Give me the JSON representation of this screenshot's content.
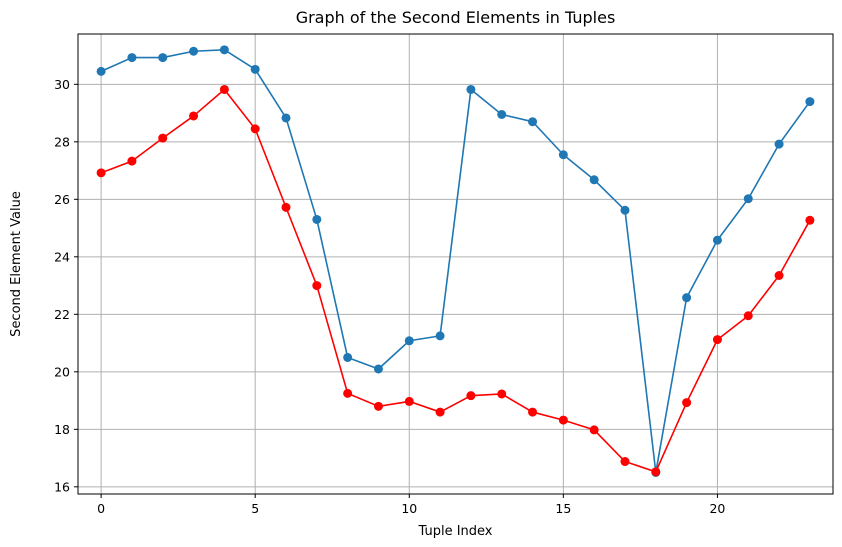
{
  "chart_data": {
    "type": "line",
    "title": "Graph of the Second Elements in Tuples",
    "xlabel": "Tuple Index",
    "ylabel": "Second Element Value",
    "xlim": [
      -0.75,
      23.75
    ],
    "ylim": [
      15.75,
      31.75
    ],
    "x_ticks": [
      0,
      5,
      10,
      15,
      20
    ],
    "y_ticks": [
      16,
      18,
      20,
      22,
      24,
      26,
      28,
      30
    ],
    "grid": true,
    "x": [
      0,
      1,
      2,
      3,
      4,
      5,
      6,
      7,
      8,
      9,
      10,
      11,
      12,
      13,
      14,
      15,
      16,
      17,
      18,
      19,
      20,
      21,
      22,
      23
    ],
    "series": [
      {
        "color": "#1f77b4",
        "marker": "circle",
        "values": [
          30.45,
          30.93,
          30.93,
          31.15,
          31.2,
          30.52,
          28.83,
          25.3,
          20.5,
          20.1,
          21.08,
          21.25,
          29.82,
          28.95,
          28.7,
          27.55,
          26.68,
          25.62,
          16.5,
          22.58,
          24.58,
          26.02,
          27.92,
          29.4
        ]
      },
      {
        "color": "#ff0000",
        "marker": "circle",
        "values": [
          26.92,
          27.33,
          28.13,
          28.9,
          29.82,
          28.45,
          25.72,
          23.0,
          19.25,
          18.8,
          18.97,
          18.6,
          19.17,
          19.23,
          18.6,
          18.32,
          17.98,
          16.88,
          16.52,
          18.93,
          21.12,
          21.95,
          23.35,
          25.27
        ]
      }
    ]
  }
}
